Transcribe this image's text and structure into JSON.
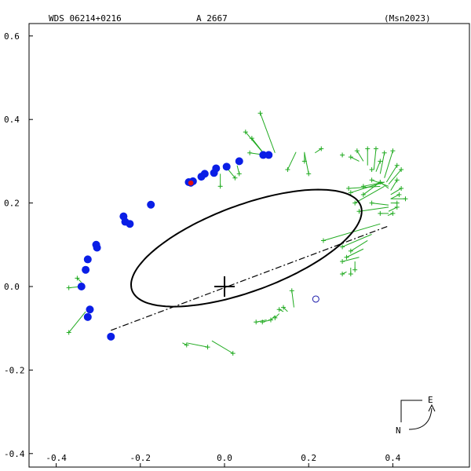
{
  "chart_data": {
    "type": "scatter",
    "title_left": "WDS 06214+0216",
    "title_center": "A  2667",
    "title_right": "(Msn2023)",
    "xlim": [
      -0.45,
      0.6
    ],
    "ylim": [
      -0.42,
      0.62
    ],
    "y_inverted": true,
    "x_ticks": [
      -0.4,
      -0.2,
      0.0,
      0.2,
      0.4
    ],
    "y_ticks": [
      0.6,
      0.4,
      0.2,
      0.0,
      -0.2,
      -0.4
    ],
    "x_tick_labels": [
      "-0.4",
      "-0.2",
      "0.0",
      "0.2",
      "0.4"
    ],
    "y_tick_labels": [
      "0.6",
      "0.4",
      "0.2",
      "0.0",
      "-0.2",
      "-0.4"
    ],
    "grid": false,
    "orbit": {
      "center": [
        0.052,
        0.092
      ],
      "semi_major": 0.29,
      "semi_minor": 0.103,
      "angle_deg": 20.5
    },
    "line_of_nodes": {
      "from": [
        -0.27,
        -0.105
      ],
      "to": [
        0.39,
        0.145
      ]
    },
    "primary": [
      0.0,
      0.0
    ],
    "open_circle": [
      0.217,
      -0.03
    ],
    "blue_points": [
      [
        -0.34,
        0.0
      ],
      [
        -0.33,
        0.04
      ],
      [
        -0.325,
        0.065
      ],
      [
        -0.305,
        0.1
      ],
      [
        -0.303,
        0.093
      ],
      [
        -0.32,
        -0.055
      ],
      [
        -0.325,
        -0.073
      ],
      [
        -0.27,
        -0.12
      ],
      [
        -0.24,
        0.168
      ],
      [
        -0.236,
        0.155
      ],
      [
        -0.225,
        0.15
      ],
      [
        -0.175,
        0.196
      ],
      [
        -0.085,
        0.25
      ],
      [
        -0.075,
        0.252
      ],
      [
        -0.055,
        0.263
      ],
      [
        -0.047,
        0.27
      ],
      [
        -0.025,
        0.272
      ],
      [
        -0.02,
        0.283
      ],
      [
        0.005,
        0.287
      ],
      [
        0.035,
        0.3
      ],
      [
        0.092,
        0.315
      ],
      [
        0.105,
        0.315
      ]
    ],
    "red_point": [
      -0.08,
      0.248
    ],
    "green_points": [
      [
        [
          0.05,
          0.37
        ],
        [
          0.1,
          0.31
        ]
      ],
      [
        [
          0.065,
          0.355
        ],
        [
          0.1,
          0.31
        ]
      ],
      [
        [
          0.085,
          0.415
        ],
        [
          0.12,
          0.32
        ]
      ],
      [
        [
          0.06,
          0.32
        ],
        [
          0.095,
          0.315
        ]
      ],
      [
        [
          0.035,
          0.27
        ],
        [
          0.03,
          0.29
        ]
      ],
      [
        [
          -0.01,
          0.24
        ],
        [
          -0.01,
          0.27
        ]
      ],
      [
        [
          0.025,
          0.26
        ],
        [
          0.005,
          0.285
        ]
      ],
      [
        [
          0.19,
          0.3
        ],
        [
          0.19,
          0.322
        ]
      ],
      [
        [
          0.2,
          0.27
        ],
        [
          0.19,
          0.32
        ]
      ],
      [
        [
          0.15,
          0.28
        ],
        [
          0.17,
          0.322
        ]
      ],
      [
        [
          0.23,
          0.33
        ],
        [
          0.215,
          0.32
        ]
      ],
      [
        [
          0.28,
          0.315
        ],
        [
          0.28,
          0.31
        ]
      ],
      [
        [
          0.3,
          0.31
        ],
        [
          0.32,
          0.3
        ]
      ],
      [
        [
          0.315,
          0.325
        ],
        [
          0.33,
          0.3
        ]
      ],
      [
        [
          0.34,
          0.33
        ],
        [
          0.34,
          0.29
        ]
      ],
      [
        [
          0.35,
          0.28
        ],
        [
          0.35,
          0.28
        ]
      ],
      [
        [
          0.36,
          0.33
        ],
        [
          0.355,
          0.28
        ]
      ],
      [
        [
          0.37,
          0.3
        ],
        [
          0.36,
          0.275
        ]
      ],
      [
        [
          0.38,
          0.32
        ],
        [
          0.37,
          0.27
        ]
      ],
      [
        [
          0.4,
          0.325
        ],
        [
          0.38,
          0.26
        ]
      ],
      [
        [
          0.41,
          0.29
        ],
        [
          0.385,
          0.25
        ]
      ],
      [
        [
          0.42,
          0.28
        ],
        [
          0.39,
          0.245
        ]
      ],
      [
        [
          0.35,
          0.255
        ],
        [
          0.39,
          0.24
        ]
      ],
      [
        [
          0.37,
          0.25
        ],
        [
          0.39,
          0.235
        ]
      ],
      [
        [
          0.41,
          0.255
        ],
        [
          0.395,
          0.23
        ]
      ],
      [
        [
          0.42,
          0.235
        ],
        [
          0.395,
          0.22
        ]
      ],
      [
        [
          0.43,
          0.21
        ],
        [
          0.395,
          0.21
        ]
      ],
      [
        [
          0.41,
          0.2
        ],
        [
          0.395,
          0.2
        ]
      ],
      [
        [
          0.35,
          0.2
        ],
        [
          0.39,
          0.195
        ]
      ],
      [
        [
          0.32,
          0.18
        ],
        [
          0.39,
          0.19
        ]
      ],
      [
        [
          0.37,
          0.175
        ],
        [
          0.39,
          0.175
        ]
      ],
      [
        [
          0.4,
          0.175
        ],
        [
          0.388,
          0.17
        ]
      ],
      [
        [
          0.41,
          0.19
        ],
        [
          0.39,
          0.18
        ]
      ],
      [
        [
          0.415,
          0.22
        ],
        [
          0.395,
          0.21
        ]
      ],
      [
        [
          0.3,
          0.225
        ],
        [
          0.38,
          0.25
        ]
      ],
      [
        [
          0.33,
          0.24
        ],
        [
          0.38,
          0.25
        ]
      ],
      [
        [
          0.31,
          0.2
        ],
        [
          0.38,
          0.24
        ]
      ],
      [
        [
          0.33,
          0.22
        ],
        [
          0.37,
          0.25
        ]
      ],
      [
        [
          0.295,
          0.235
        ],
        [
          0.37,
          0.24
        ]
      ],
      [
        [
          0.235,
          0.11
        ],
        [
          0.37,
          0.15
        ]
      ],
      [
        [
          0.28,
          0.095
        ],
        [
          0.35,
          0.125
        ]
      ],
      [
        [
          0.3,
          0.085
        ],
        [
          0.34,
          0.11
        ]
      ],
      [
        [
          0.29,
          0.07
        ],
        [
          0.33,
          0.09
        ]
      ],
      [
        [
          0.28,
          0.06
        ],
        [
          0.32,
          0.07
        ]
      ],
      [
        [
          0.31,
          0.04
        ],
        [
          0.31,
          0.06
        ]
      ],
      [
        [
          0.3,
          0.03
        ],
        [
          0.3,
          0.045
        ]
      ],
      [
        [
          0.28,
          0.03
        ],
        [
          0.29,
          0.035
        ]
      ],
      [
        [
          0.16,
          -0.01
        ],
        [
          0.165,
          -0.05
        ]
      ],
      [
        [
          0.14,
          -0.05
        ],
        [
          0.15,
          -0.06
        ]
      ],
      [
        [
          0.13,
          -0.055
        ],
        [
          0.14,
          -0.06
        ]
      ],
      [
        [
          0.12,
          -0.075
        ],
        [
          0.13,
          -0.065
        ]
      ],
      [
        [
          0.11,
          -0.08
        ],
        [
          0.12,
          -0.07
        ]
      ],
      [
        [
          0.09,
          -0.085
        ],
        [
          0.11,
          -0.08
        ]
      ],
      [
        [
          0.075,
          -0.085
        ],
        [
          0.1,
          -0.08
        ]
      ],
      [
        [
          -0.09,
          -0.14
        ],
        [
          -0.1,
          -0.135
        ]
      ],
      [
        [
          -0.04,
          -0.145
        ],
        [
          -0.09,
          -0.135
        ]
      ],
      [
        [
          0.02,
          -0.16
        ],
        [
          -0.03,
          -0.13
        ]
      ],
      [
        [
          -0.37,
          -0.11
        ],
        [
          -0.33,
          -0.06
        ]
      ],
      [
        [
          -0.37,
          -0.003
        ],
        [
          -0.34,
          0.0
        ]
      ],
      [
        [
          -0.35,
          0.02
        ],
        [
          -0.34,
          0.01
        ]
      ]
    ]
  },
  "compass": {
    "east_label": "E",
    "north_label": "N"
  }
}
